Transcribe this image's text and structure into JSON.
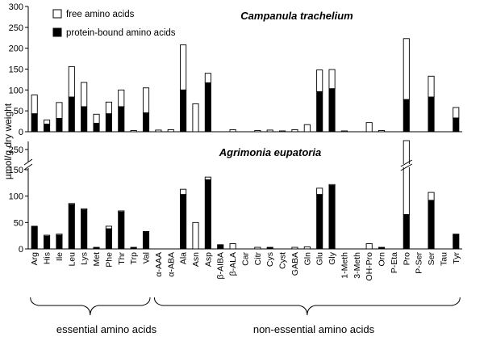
{
  "chart_data": {
    "type": "bar",
    "ylabel": "µmol/g dry weight",
    "legend": {
      "position": "top-left",
      "entries": [
        {
          "label": "free amino acids",
          "color": "#ffffff"
        },
        {
          "label": "protein-bound amino acids",
          "color": "#000000"
        }
      ]
    },
    "categories": [
      "Arg",
      "His",
      "Ile",
      "Leu",
      "Lys",
      "Met",
      "Phe",
      "Thr",
      "Trp",
      "Val",
      "α-AAA",
      "α-ABA",
      "Ala",
      "Asn",
      "Asp",
      "β-AIBA",
      "β-ALA",
      "Car",
      "Citr",
      "Cys",
      "Cyst",
      "GABA",
      "Gln",
      "Glu",
      "Gly",
      "1-Meth",
      "3-Meth",
      "OH-Pro",
      "Orn",
      "P-Eta",
      "Pro",
      "P-Ser",
      "Ser",
      "Tau",
      "Tyr"
    ],
    "groups": [
      {
        "label": "essential amino acids",
        "from": "Arg",
        "to": "Val"
      },
      {
        "label": "non-essential amino acids",
        "from": "α-AAA",
        "to": "Tyr"
      }
    ],
    "panels": [
      {
        "title": "Campanula trachelium",
        "ylim": [
          0,
          300
        ],
        "yticks": [
          0,
          50,
          100,
          150,
          200,
          250,
          300
        ],
        "series": [
          {
            "name": "protein-bound amino acids",
            "values": [
              43,
              18,
              32,
              83,
              60,
              20,
              43,
              60,
              0,
              45,
              0,
              0,
              100,
              0,
              117,
              0,
              0,
              0,
              0,
              0,
              0,
              0,
              0,
              96,
              103,
              0,
              0,
              0,
              0,
              0,
              77,
              0,
              83,
              0,
              33
            ]
          },
          {
            "name": "free amino acids",
            "values": [
              45,
              10,
              38,
              73,
              58,
              22,
              28,
              40,
              3,
              60,
              4,
              5,
              108,
              67,
              23,
              0,
              5,
              0,
              3,
              4,
              2,
              5,
              17,
              52,
              46,
              2,
              0,
              22,
              3,
              0,
              146,
              0,
              50,
              0,
              25
            ]
          }
        ]
      },
      {
        "title": "Agrimonia eupatoria",
        "ylim": [
          0,
          265
        ],
        "yticks": [
          0,
          50,
          100,
          150,
          250
        ],
        "axis_break": "between 150 and 250",
        "series": [
          {
            "name": "protein-bound amino acids",
            "values": [
              43,
              24,
              26,
              84,
              74,
              3,
              38,
              70,
              3,
              33,
              0,
              0,
              103,
              0,
              131,
              8,
              0,
              0,
              0,
              3,
              0,
              0,
              0,
              103,
              120,
              0,
              0,
              0,
              3,
              0,
              65,
              0,
              92,
              0,
              28
            ]
          },
          {
            "name": "free amino acids",
            "values": [
              0,
              2,
              2,
              2,
              2,
              0,
              5,
              2,
              0,
              0,
              0,
              0,
              10,
              50,
              5,
              0,
              10,
              0,
              3,
              0,
              0,
              3,
              4,
              12,
              2,
              0,
              0,
              10,
              0,
              0,
              195,
              0,
              15,
              0,
              0
            ]
          }
        ]
      }
    ]
  }
}
